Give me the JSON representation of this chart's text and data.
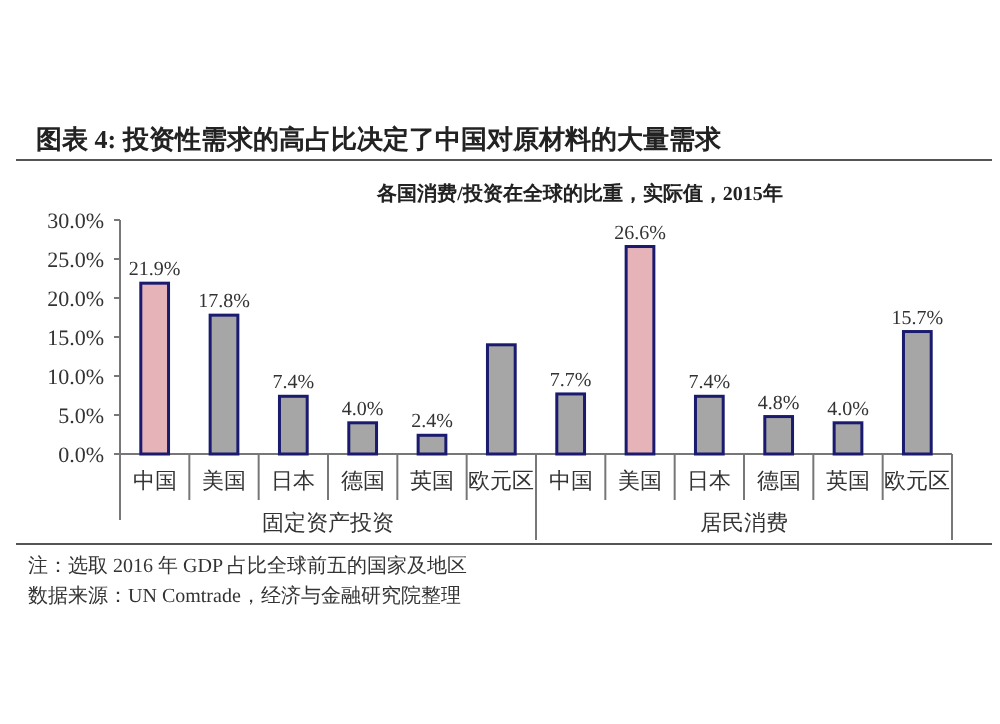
{
  "chart_data": {
    "type": "bar",
    "title": "图表 4: 投资性需求的高占比决定了中国对原材料的大量需求",
    "subtitle": "各国消费/投资在全球的比重，实际值，2015年",
    "categories": [
      "中国",
      "美国",
      "日本",
      "德国",
      "英国",
      "欧元区",
      "中国",
      "美国",
      "日本",
      "德国",
      "英国",
      "欧元区"
    ],
    "values": [
      21.9,
      17.8,
      7.4,
      4.0,
      2.4,
      14.0,
      7.7,
      26.6,
      7.4,
      4.8,
      4.0,
      15.7
    ],
    "value_labels": [
      "21.9%",
      "17.8%",
      "7.4%",
      "4.0%",
      "2.4%",
      null,
      "7.7%",
      "26.6%",
      "7.4%",
      "4.8%",
      "4.0%",
      "15.7%"
    ],
    "colors": [
      "#e6b3b8",
      "#a6a6a6",
      "#a6a6a6",
      "#a6a6a6",
      "#a6a6a6",
      "#a6a6a6",
      "#a6a6a6",
      "#e6b3b8",
      "#a6a6a6",
      "#a6a6a6",
      "#a6a6a6",
      "#a6a6a6"
    ],
    "ylim": [
      0,
      30
    ],
    "yticks": [
      {
        "value": 0,
        "label": "0.0%"
      },
      {
        "value": 5,
        "label": "5.0%"
      },
      {
        "value": 10,
        "label": "10.0%"
      },
      {
        "value": 15,
        "label": "15.0%"
      },
      {
        "value": 20,
        "label": "20.0%"
      },
      {
        "value": 25,
        "label": "25.0%"
      },
      {
        "value": 30,
        "label": "30.0%"
      }
    ],
    "grid": false,
    "annotations": [
      "固定资产投资",
      "居民消费",
      "注：选取 2016 年 GDP 占比全球前五的国家及地区",
      "数据来源：UN Comtrade，经济与金融研究院整理"
    ]
  }
}
